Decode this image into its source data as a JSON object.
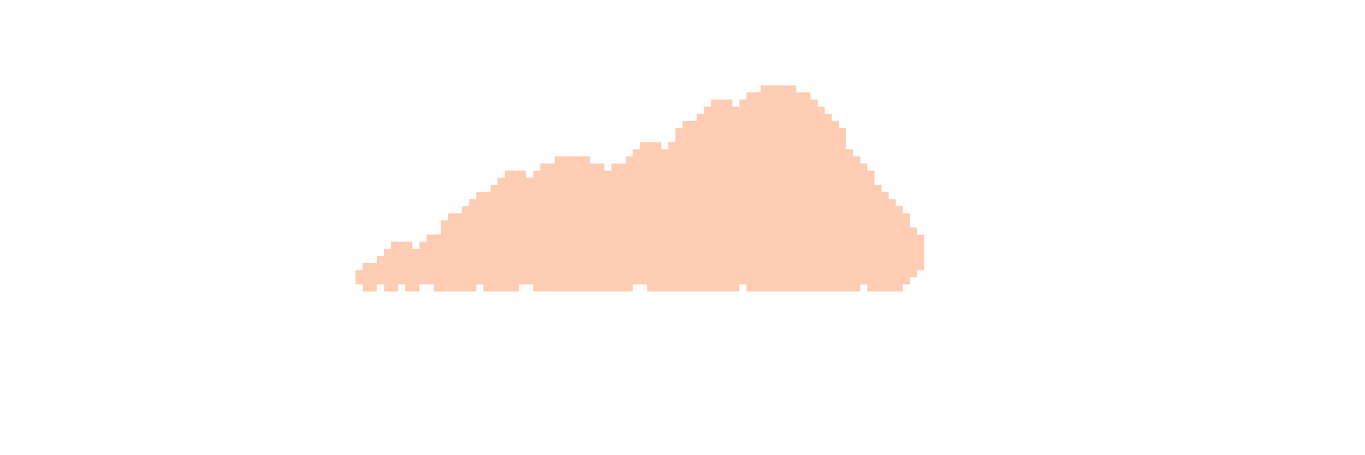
{
  "sprite": {
    "name": "pixel-cloud",
    "fill_color": "#FECDB4",
    "background_color": "#FFFFFF"
  }
}
